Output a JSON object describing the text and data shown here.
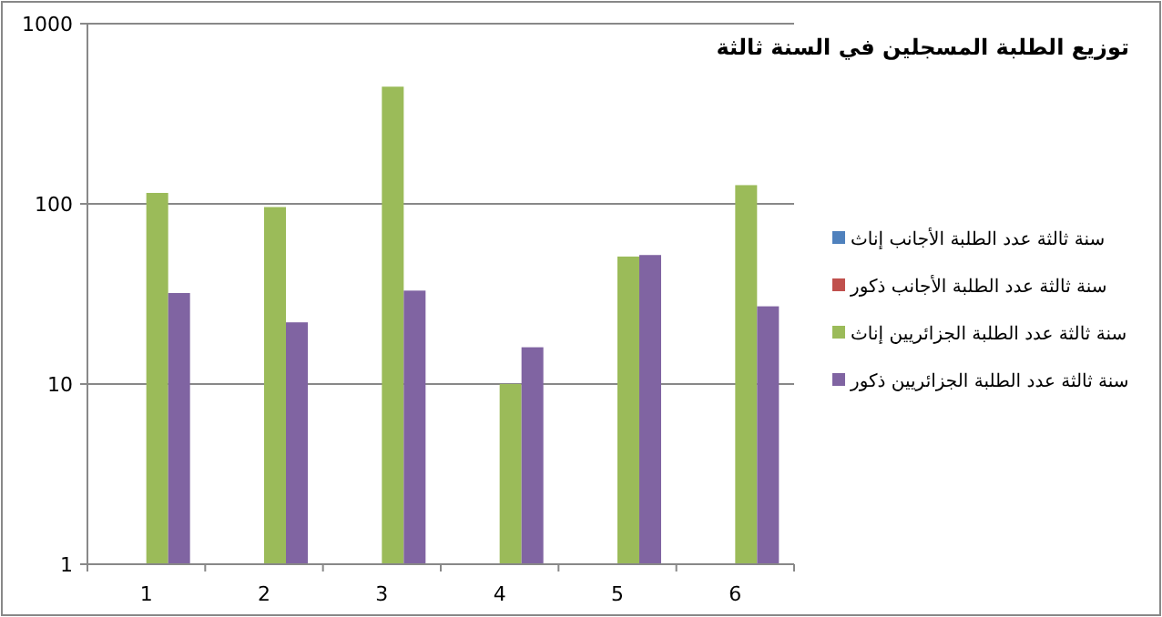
{
  "chart_data": {
    "type": "bar",
    "title": "توزيع الطلبة المسجلين في السنة ثالثة",
    "categories": [
      "1",
      "2",
      "3",
      "4",
      "5",
      "6"
    ],
    "log": true,
    "ylim": [
      1,
      1000
    ],
    "yticks": [
      1,
      10,
      100,
      1000
    ],
    "grid": "y",
    "legend": "right",
    "series": [
      {
        "name": "سنة ثالثة عدد الطلبة الأجانب إناث",
        "color": "#4f81bd",
        "values": [
          null,
          null,
          null,
          null,
          null,
          null
        ]
      },
      {
        "name": "سنة ثالثة عدد الطلبة الأجانب ذكور",
        "color": "#c0504d",
        "values": [
          null,
          null,
          null,
          null,
          null,
          null
        ]
      },
      {
        "name": "سنة ثالثة عدد الطلبة الجزائريين إناث",
        "color": "#9bbb59",
        "values": [
          115,
          96,
          447,
          10,
          51,
          127
        ]
      },
      {
        "name": "سنة ثالثة عدد الطلبة الجزائريين ذكور",
        "color": "#8064a2",
        "values": [
          32,
          22,
          33,
          16,
          52,
          27
        ]
      }
    ]
  }
}
